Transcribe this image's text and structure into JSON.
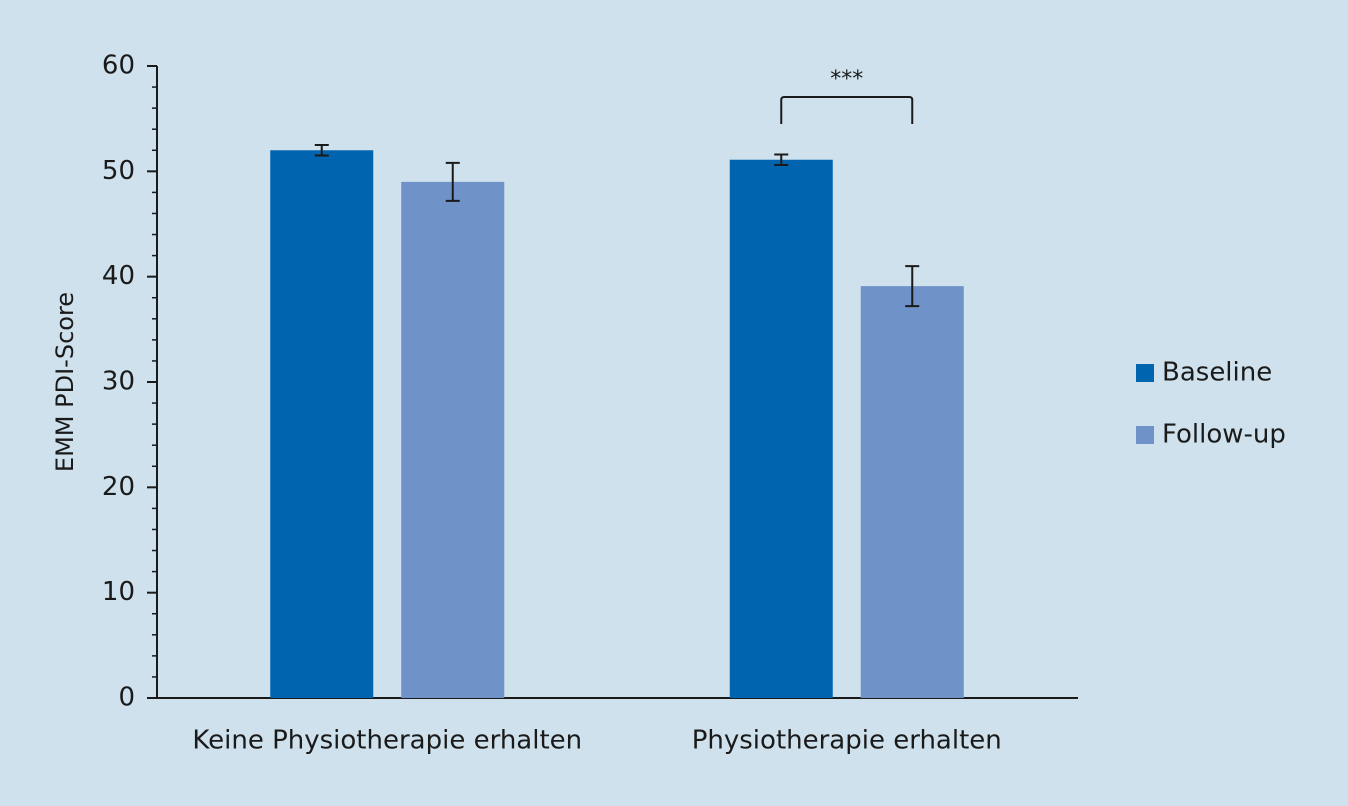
{
  "chart_data": {
    "type": "bar",
    "y_label": "EMM PDI-Score",
    "categories": [
      "Keine Physiotherapie erhalten",
      "Physiotherapie erhalten"
    ],
    "series": [
      {
        "name": "Baseline",
        "color": "#0064ae",
        "values": [
          52.0,
          51.1
        ],
        "errors": [
          0.5,
          0.5
        ]
      },
      {
        "name": "Follow-up",
        "color": "#6f92c8",
        "values": [
          49.0,
          39.1
        ],
        "errors": [
          1.8,
          1.9
        ]
      }
    ],
    "ylim": [
      0,
      60
    ],
    "yticks": [
      0,
      10,
      20,
      30,
      40,
      50,
      60
    ],
    "yminorticks": [
      2,
      4,
      6,
      8,
      12,
      14,
      16,
      18,
      22,
      24,
      26,
      28,
      32,
      34,
      36,
      38,
      42,
      44,
      46,
      48,
      52,
      54,
      56,
      58
    ],
    "annotation": "***",
    "legend": "right"
  }
}
